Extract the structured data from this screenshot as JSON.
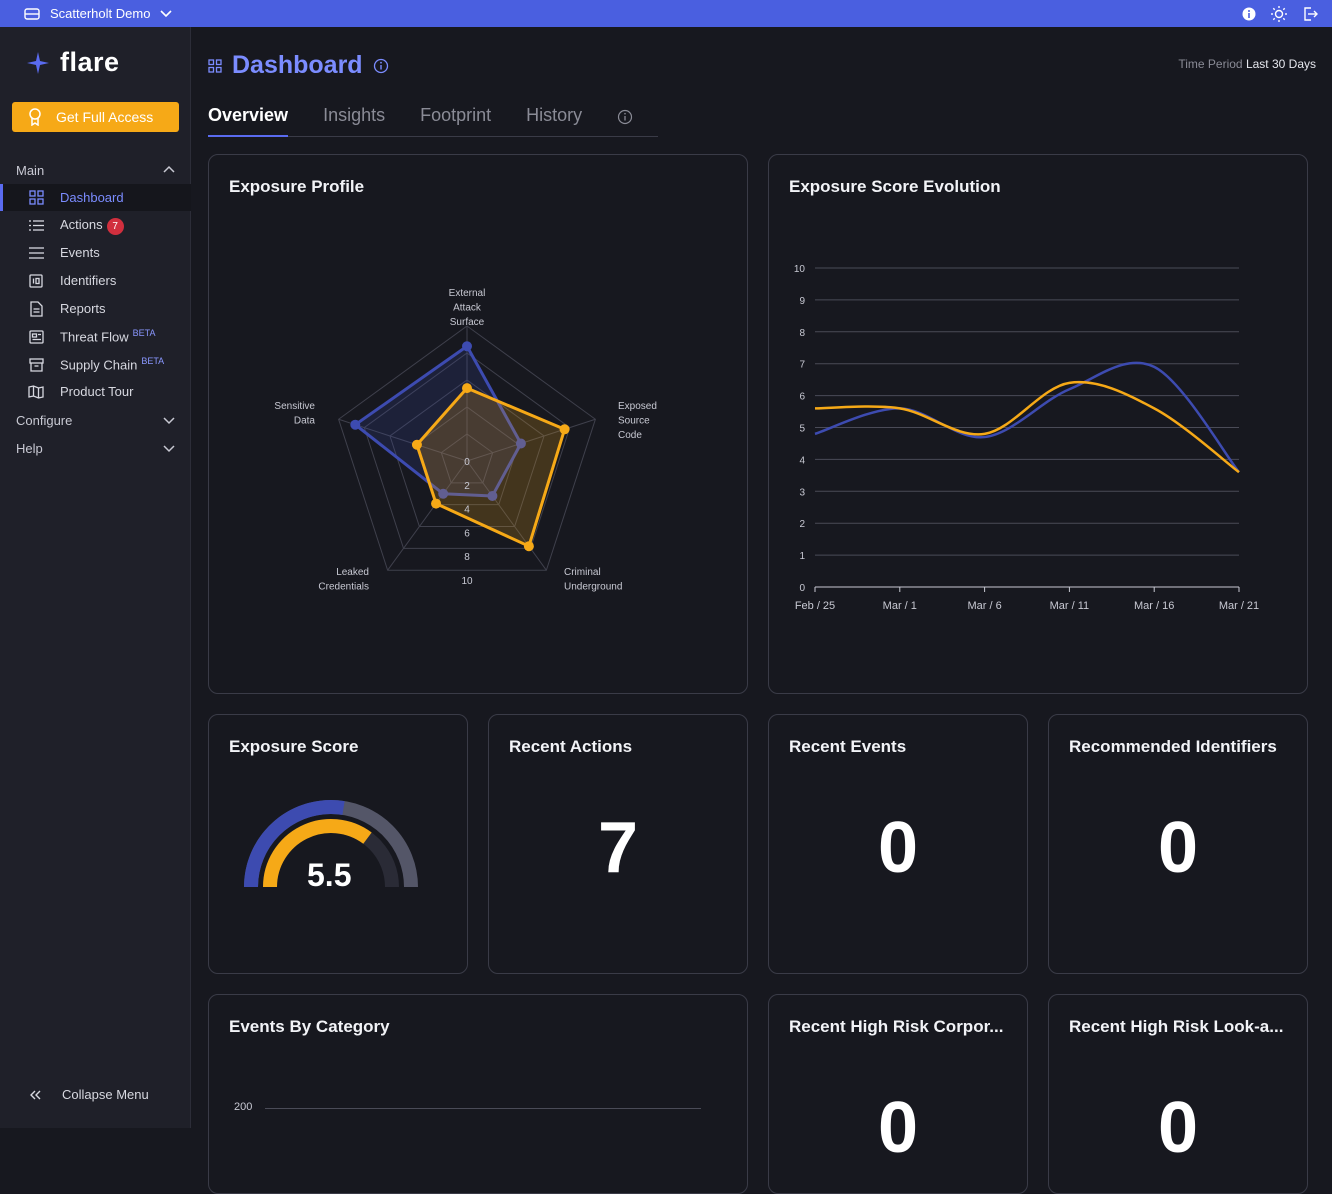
{
  "topbar": {
    "tenant": "Scatterholt Demo",
    "icons": [
      "building-icon",
      "chevron-down-icon",
      "info-icon",
      "sun-icon",
      "logout-icon"
    ]
  },
  "sidebar": {
    "brand": "flare",
    "cta": "Get Full Access",
    "sections": {
      "main": "Main",
      "configure": "Configure",
      "help": "Help"
    },
    "items": [
      {
        "label": "Dashboard",
        "icon": "grid-icon"
      },
      {
        "label": "Actions",
        "icon": "list-icon",
        "badge": "7"
      },
      {
        "label": "Events",
        "icon": "menu-icon"
      },
      {
        "label": "Identifiers",
        "icon": "id-icon"
      },
      {
        "label": "Reports",
        "icon": "document-icon"
      },
      {
        "label": "Threat Flow",
        "icon": "news-icon",
        "tag": "BETA"
      },
      {
        "label": "Supply Chain",
        "icon": "archive-icon",
        "tag": "BETA"
      },
      {
        "label": "Product Tour",
        "icon": "map-icon"
      }
    ],
    "collapse": "Collapse Menu"
  },
  "header": {
    "title": "Dashboard",
    "period_label": "Time Period",
    "period_value": "Last 30 Days"
  },
  "tabs": [
    "Overview",
    "Insights",
    "Footprint",
    "History"
  ],
  "cards": {
    "exposure_profile": "Exposure Profile",
    "score_evolution": "Exposure Score Evolution",
    "exposure_score": "Exposure Score",
    "recent_actions": "Recent Actions",
    "recent_events": "Recent Events",
    "recommended_identifiers": "Recommended Identifiers",
    "events_by_category": "Events By Category",
    "high_risk_corp": "Recent High Risk Corpor...",
    "high_risk_lookalike": "Recent High Risk Look-a..."
  },
  "values": {
    "exposure_score": "5.5",
    "recent_actions": "7",
    "recent_events": "0",
    "recommended_identifiers": "0",
    "high_risk_corp": "0",
    "high_risk_lookalike": "0",
    "events_axis_top": "200"
  },
  "chart_data": [
    {
      "type": "radar",
      "axes": [
        "External Attack Surface",
        "Exposed Source Code",
        "Criminal Underground",
        "Leaked Credentials",
        "Sensitive Data"
      ],
      "ticks": [
        "0",
        "2",
        "4",
        "6",
        "8",
        "10"
      ],
      "range": [
        0,
        10
      ],
      "series": [
        {
          "color": "#3d4bb0",
          "values": [
            8.5,
            4.2,
            3.2,
            3.0,
            8.7
          ]
        },
        {
          "color": "#f6a917",
          "values": [
            5.4,
            7.6,
            7.8,
            3.9,
            3.9
          ]
        }
      ]
    },
    {
      "type": "line",
      "x": [
        "Feb / 25",
        "Mar / 1",
        "Mar / 6",
        "Mar / 11",
        "Mar / 16",
        "Mar / 21"
      ],
      "ylim": [
        0,
        10
      ],
      "yticks": [
        "0",
        "1",
        "2",
        "3",
        "4",
        "5",
        "6",
        "7",
        "8",
        "9",
        "10"
      ],
      "series": [
        {
          "color": "#3d4bb0",
          "values": [
            4.8,
            5.6,
            4.7,
            6.2,
            6.9,
            3.6
          ]
        },
        {
          "color": "#f6a917",
          "values": [
            5.6,
            5.6,
            4.8,
            6.4,
            5.6,
            3.6
          ]
        }
      ]
    },
    {
      "type": "gauge",
      "value": 5.5,
      "max": 10
    }
  ]
}
